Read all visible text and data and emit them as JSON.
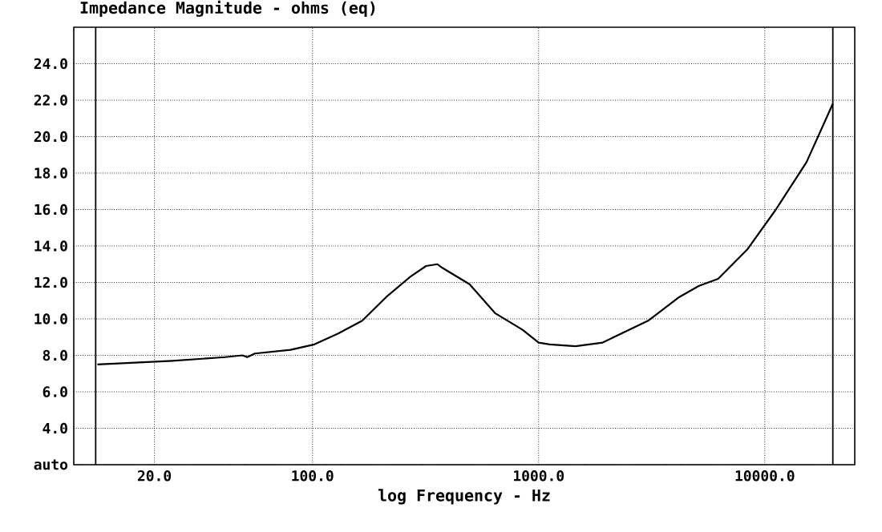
{
  "chart_data": {
    "type": "line",
    "title": "Impedance Magnitude - ohms (eq)",
    "xlabel": "log Frequency - Hz",
    "log": "x",
    "grid": true,
    "xlim": [
      8.8,
      25000
    ],
    "ylim": [
      2,
      26
    ],
    "xticks": [
      {
        "value": 20,
        "label": "20.0"
      },
      {
        "value": 100,
        "label": "100.0"
      },
      {
        "value": 1000,
        "label": "1000.0"
      },
      {
        "value": 10000,
        "label": "10000.0"
      }
    ],
    "yticks": [
      {
        "value": 2,
        "label": "auto"
      },
      {
        "value": 4,
        "label": "4.0"
      },
      {
        "value": 6,
        "label": "6.0"
      },
      {
        "value": 8,
        "label": "8.0"
      },
      {
        "value": 10,
        "label": "10.0"
      },
      {
        "value": 12,
        "label": "12.0"
      },
      {
        "value": 14,
        "label": "14.0"
      },
      {
        "value": 16,
        "label": "16.0"
      },
      {
        "value": 18,
        "label": "18.0"
      },
      {
        "value": 20,
        "label": "20.0"
      },
      {
        "value": 22,
        "label": "22.0"
      },
      {
        "value": 24,
        "label": "24.0"
      }
    ],
    "ref_lines": [
      {
        "axis": "x",
        "value": 11,
        "color": "#000000"
      },
      {
        "axis": "x",
        "value": 20000,
        "color": "#000000"
      }
    ],
    "series": [
      {
        "color": "#000000",
        "x": [
          11.2,
          24,
          41,
          49,
          51.5,
          55.6,
          80,
          102,
          130,
          166,
          212,
          270,
          318,
          357,
          375,
          495,
          644,
          849,
          1000,
          1120,
          1456,
          1920,
          3050,
          4190,
          5100,
          6220,
          8360,
          11200,
          15300,
          20000
        ],
        "values": [
          7.5,
          7.7,
          7.9,
          8.0,
          7.9,
          8.1,
          8.3,
          8.6,
          9.2,
          9.9,
          11.2,
          12.3,
          12.9,
          13.0,
          12.8,
          11.9,
          10.3,
          9.4,
          8.7,
          8.6,
          8.5,
          8.7,
          9.9,
          11.2,
          11.8,
          12.2,
          13.8,
          16.0,
          18.6,
          21.8
        ]
      }
    ]
  }
}
